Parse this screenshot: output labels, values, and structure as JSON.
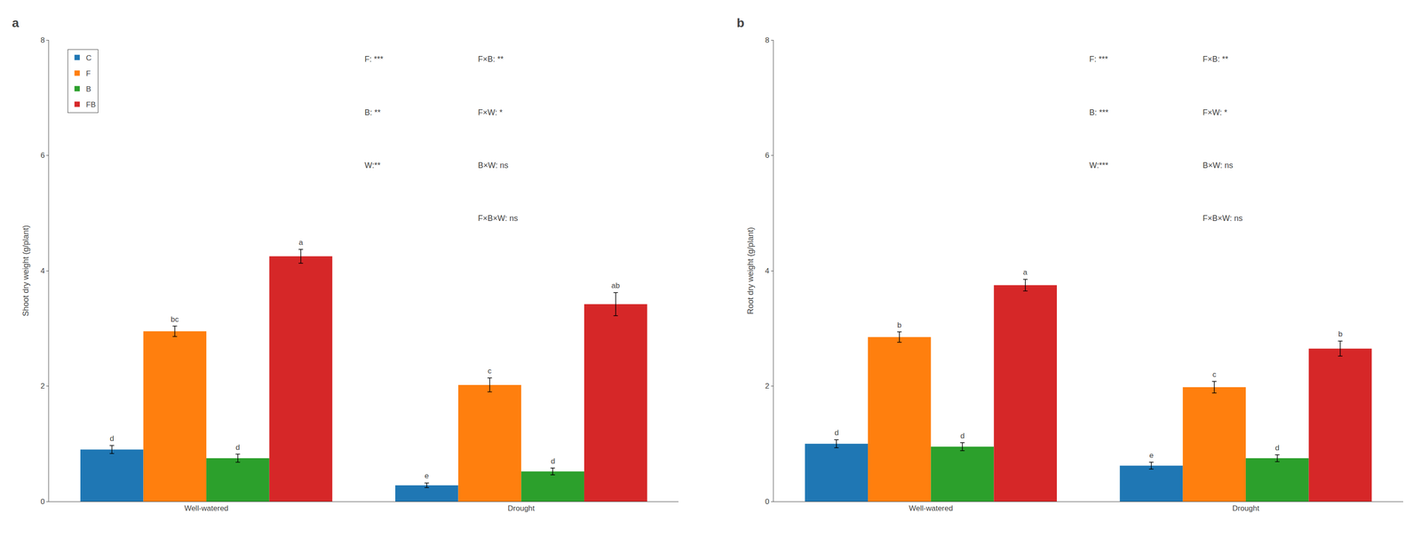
{
  "chart_data": [
    {
      "type": "bar",
      "title": "a",
      "ylabel": "Shoot dry weight (g/plant)",
      "categories": [
        "Well-watered",
        "Drought"
      ],
      "series": [
        {
          "name": "C",
          "color": "#1f77b4",
          "values": [
            0.9,
            0.28
          ],
          "errors": [
            0.07,
            0.04
          ],
          "letters": [
            "d",
            "e"
          ]
        },
        {
          "name": "F",
          "color": "#ff7f0e",
          "values": [
            2.95,
            2.02
          ],
          "errors": [
            0.09,
            0.12
          ],
          "letters": [
            "bc",
            "c"
          ]
        },
        {
          "name": "B",
          "color": "#2ca02c",
          "values": [
            0.75,
            0.52
          ],
          "errors": [
            0.07,
            0.06
          ],
          "letters": [
            "d",
            "d"
          ]
        },
        {
          "name": "FB",
          "color": "#d62728",
          "values": [
            4.25,
            3.42
          ],
          "errors": [
            0.12,
            0.2
          ],
          "letters": [
            "a",
            "ab"
          ]
        }
      ],
      "ylim": [
        0,
        8
      ],
      "yticks": [
        0,
        2,
        4,
        6,
        8
      ],
      "grid": false,
      "legend": "upper left",
      "stats_left": [
        "F: ***",
        "B: **",
        "W:**"
      ],
      "stats_right": [
        "F×B: **",
        "F×W: *",
        "B×W: ns",
        "F×B×W: ns"
      ]
    },
    {
      "type": "bar",
      "title": "b",
      "ylabel": "Root dry weight (g/plant)",
      "categories": [
        "Well-watered",
        "Drought"
      ],
      "series": [
        {
          "name": "C",
          "color": "#1f77b4",
          "values": [
            1.0,
            0.62
          ],
          "errors": [
            0.07,
            0.06
          ],
          "letters": [
            "d",
            "e"
          ]
        },
        {
          "name": "F",
          "color": "#ff7f0e",
          "values": [
            2.85,
            1.98
          ],
          "errors": [
            0.09,
            0.1
          ],
          "letters": [
            "b",
            "c"
          ]
        },
        {
          "name": "B",
          "color": "#2ca02c",
          "values": [
            0.95,
            0.75
          ],
          "errors": [
            0.07,
            0.06
          ],
          "letters": [
            "d",
            "d"
          ]
        },
        {
          "name": "FB",
          "color": "#d62728",
          "values": [
            3.75,
            2.65
          ],
          "errors": [
            0.1,
            0.13
          ],
          "letters": [
            "a",
            "b"
          ]
        }
      ],
      "ylim": [
        0,
        8
      ],
      "yticks": [
        0,
        2,
        4,
        6,
        8
      ],
      "grid": false,
      "stats_left": [
        "F: ***",
        "B: ***",
        "W:***"
      ],
      "stats_right": [
        "F×B: **",
        "F×W: *",
        "B×W: ns",
        "F×B×W: ns"
      ]
    }
  ]
}
